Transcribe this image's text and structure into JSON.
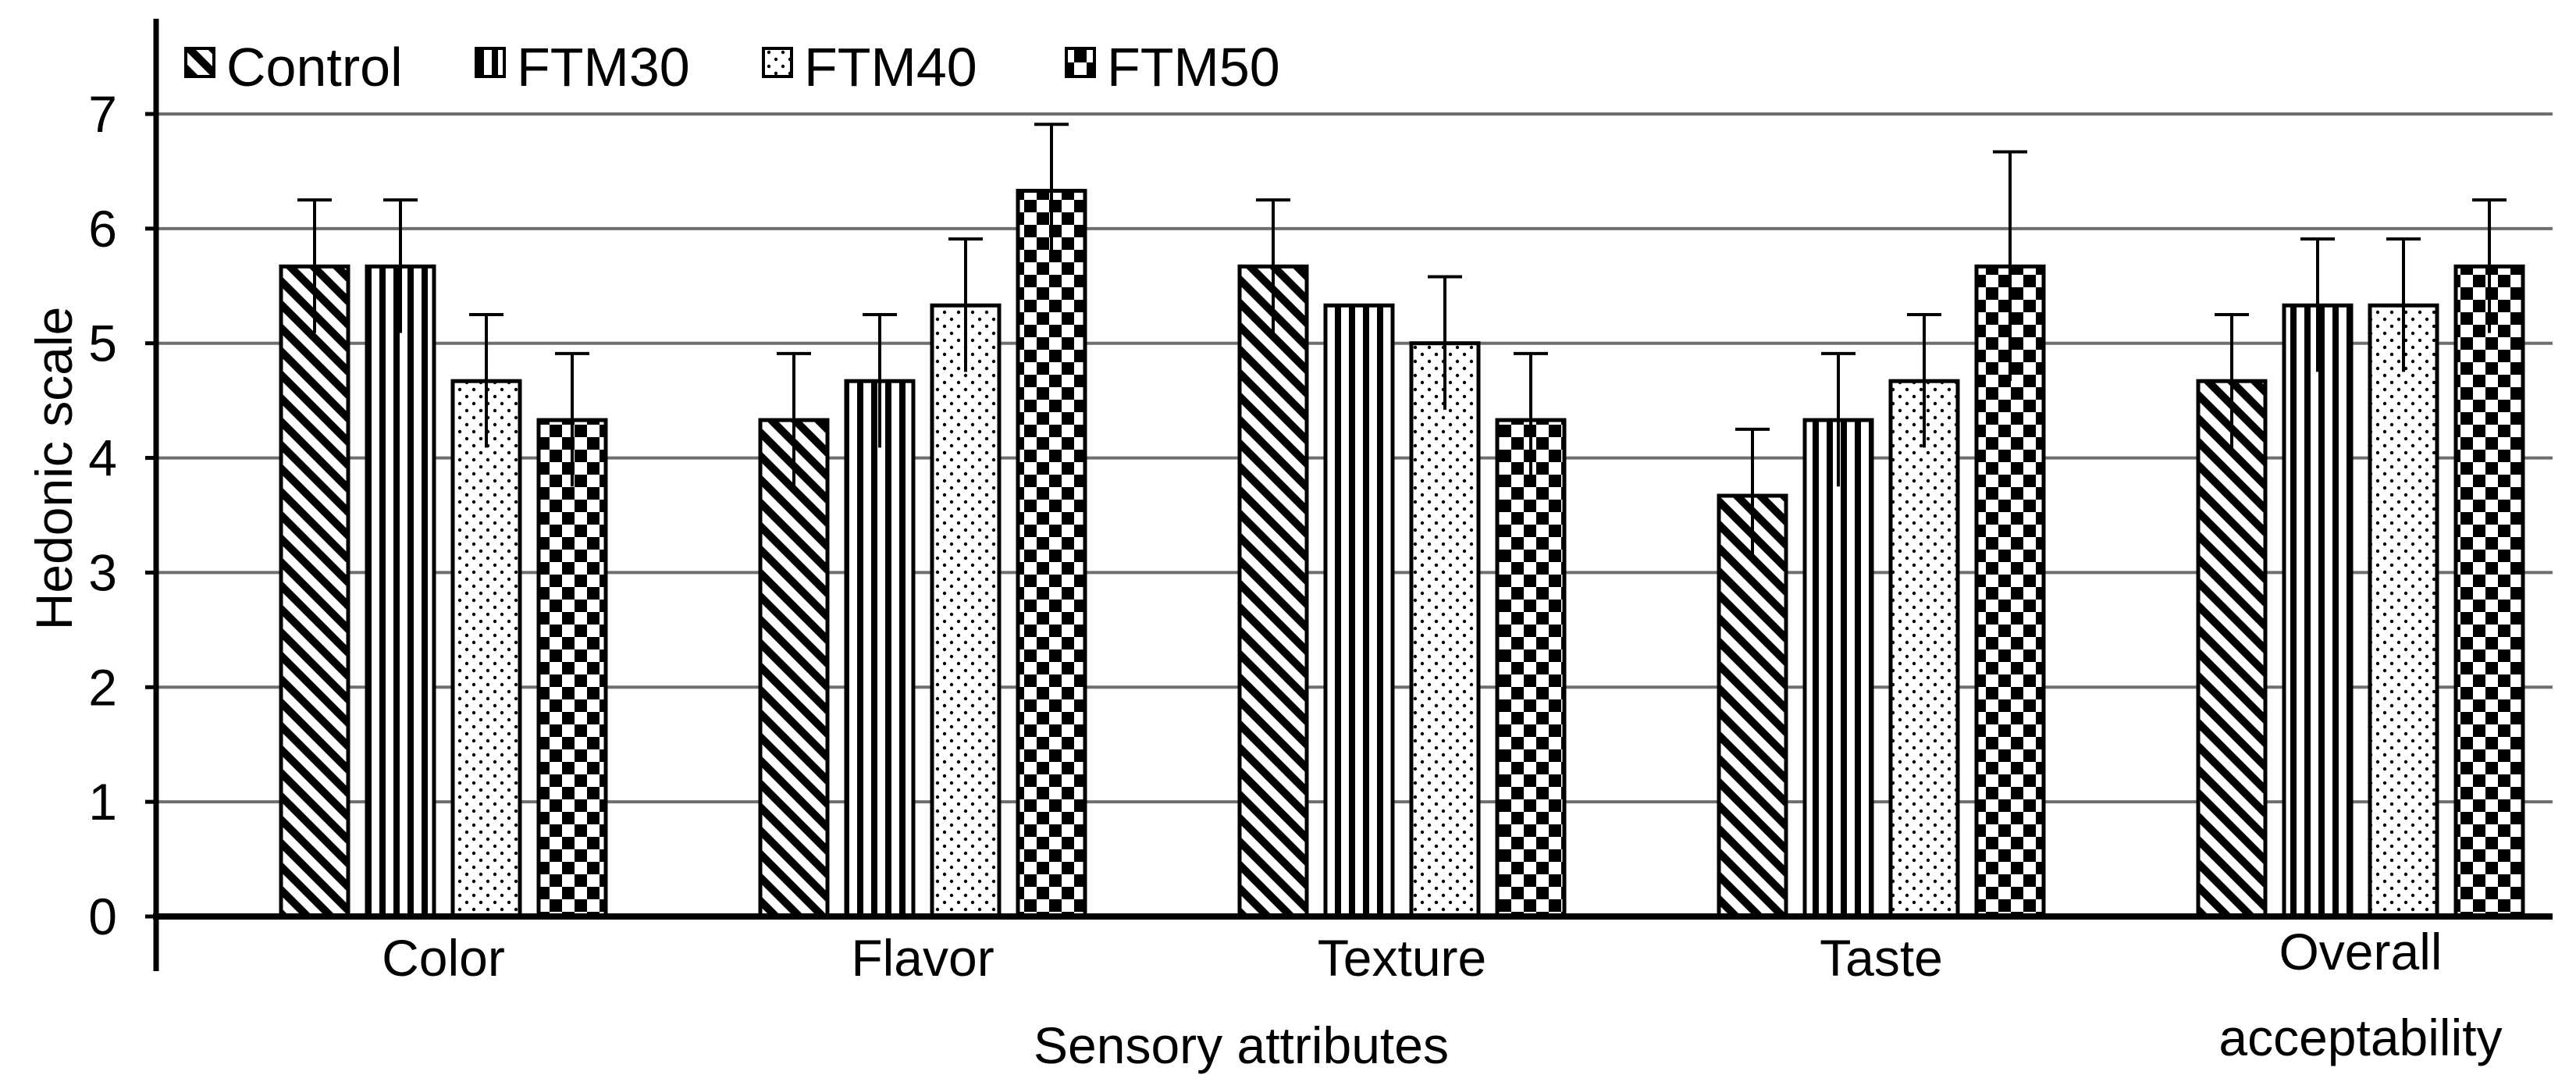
{
  "chart_data": {
    "type": "bar",
    "title": "",
    "xlabel": "Sensory attributes",
    "ylabel": "Hedonic scale",
    "ylim": [
      0,
      7
    ],
    "yticks": [
      "0",
      "1",
      "2",
      "3",
      "4",
      "5",
      "6",
      "7"
    ],
    "grid": true,
    "legend_position": "top-left",
    "categories": [
      "Color",
      "Flavor",
      "Texture",
      "Taste",
      "Overall acceptability"
    ],
    "series": [
      {
        "name": "Control",
        "pattern": "diagonal",
        "values": [
          5.67,
          4.33,
          5.67,
          3.67,
          4.67
        ],
        "errors": [
          0.58,
          0.58,
          0.58,
          0.58,
          0.58
        ]
      },
      {
        "name": "FTM30",
        "pattern": "vertical",
        "values": [
          5.67,
          4.67,
          5.33,
          4.33,
          5.33
        ],
        "errors": [
          0.58,
          0.58,
          0.0,
          0.58,
          0.58
        ]
      },
      {
        "name": "FTM40",
        "pattern": "dots",
        "values": [
          4.67,
          5.33,
          5.0,
          4.67,
          5.33
        ],
        "errors": [
          0.58,
          0.58,
          0.58,
          0.58,
          0.58
        ]
      },
      {
        "name": "FTM50",
        "pattern": "checker",
        "values": [
          4.33,
          6.33,
          4.33,
          5.67,
          5.67
        ],
        "errors": [
          0.58,
          0.58,
          0.58,
          1.0,
          0.58
        ]
      }
    ],
    "colors": {
      "bar_fill": "#000000",
      "bar_background": "#ffffff",
      "gridline": "#6e6e6e",
      "axis": "#000000"
    }
  }
}
